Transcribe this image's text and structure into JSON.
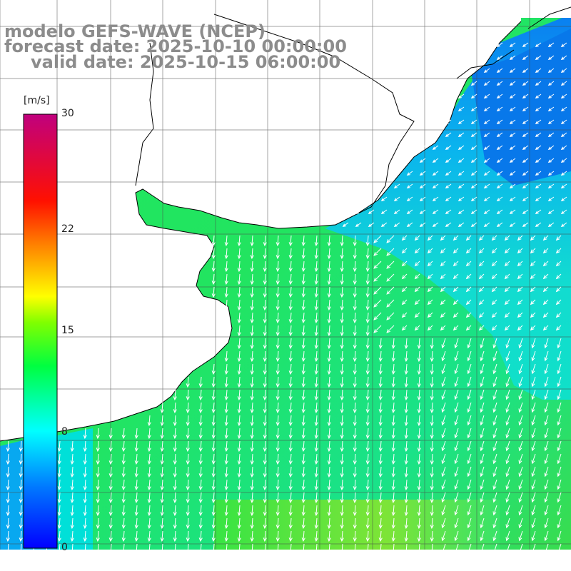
{
  "titles": {
    "line1": "modelo GEFS-WAVE (NCEP)",
    "line2": "forecast date: 2025-10-10 00:00:00",
    "line3": "valid date: 2025-10-15 06:00:00"
  },
  "colorbar": {
    "unit": "[m/s]",
    "min": 0,
    "max": 30,
    "ticks": [
      {
        "value": 30,
        "label": "30"
      },
      {
        "value": 22,
        "label": "22"
      },
      {
        "value": 15,
        "label": "15"
      },
      {
        "value": 8,
        "label": "8"
      },
      {
        "value": 0,
        "label": "0"
      }
    ],
    "stops": [
      "#0000ff",
      "#0080ff",
      "#00ffff",
      "#00ff00",
      "#ffff00",
      "#ff8000",
      "#ff0000",
      "#c8007a"
    ]
  },
  "field": {
    "description_colors": {
      "ocean_high": "#5ce23a",
      "ocean_mid": "#1ee860",
      "ocean_low": "#00d8e8",
      "ocean_north": "#0a8ff0",
      "land": "#ffffff",
      "coast": "#000000",
      "arrows": "#ffffff",
      "grid": "#555555"
    }
  }
}
